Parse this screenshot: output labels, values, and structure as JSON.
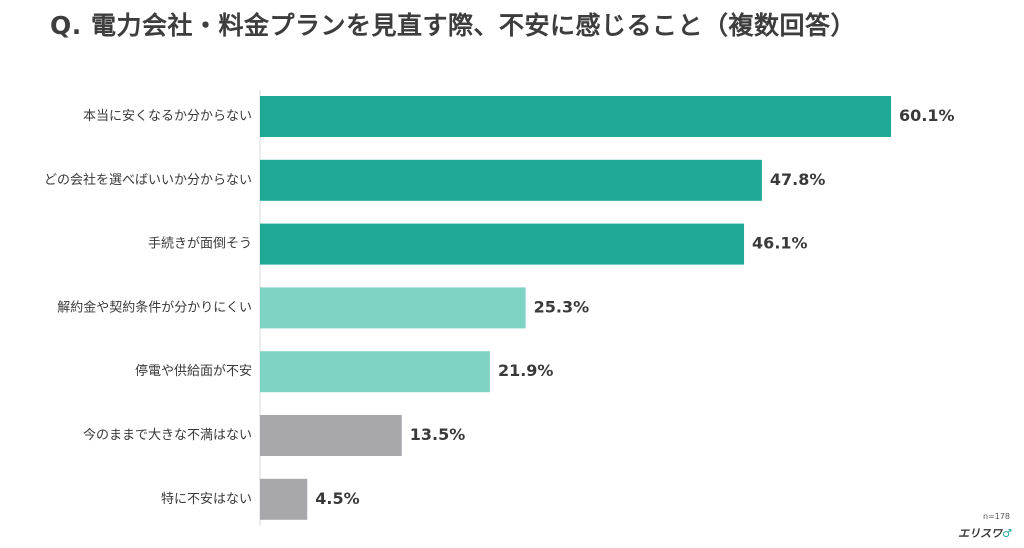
{
  "title": "Q. 電力会社・料金プランを見直す際、不安に感じること（複数回答）",
  "sample_size": "n=178",
  "brand": "エリスワ",
  "colors": {
    "top3": "#1ea896",
    "mid": "#7fd3c5",
    "low": "#a8a7ab",
    "label_text": "#3a3a3a",
    "value_text": "#3a3a3a"
  },
  "chart_data": {
    "type": "bar",
    "orientation": "horizontal",
    "title": "Q. 電力会社・料金プランを見直す際、不安に感じること（複数回答）",
    "categories": [
      "本当に安くなるか分からない",
      "どの会社を選べばいいか分からない",
      "手続きが面倒そう",
      "解約金や契約条件が分かりにくい",
      "停電や供給面が不安",
      "今のままで大きな不満はない",
      "特に不安はない"
    ],
    "values": [
      60.1,
      47.8,
      46.1,
      25.3,
      21.9,
      13.5,
      4.5
    ],
    "value_labels": [
      "60.1%",
      "47.8%",
      "46.1%",
      "25.3%",
      "21.9%",
      "13.5%",
      "4.5%"
    ],
    "color_groups": [
      "top3",
      "top3",
      "top3",
      "mid",
      "mid",
      "low",
      "low"
    ],
    "unit": "%",
    "grid": false,
    "legend": "none"
  }
}
